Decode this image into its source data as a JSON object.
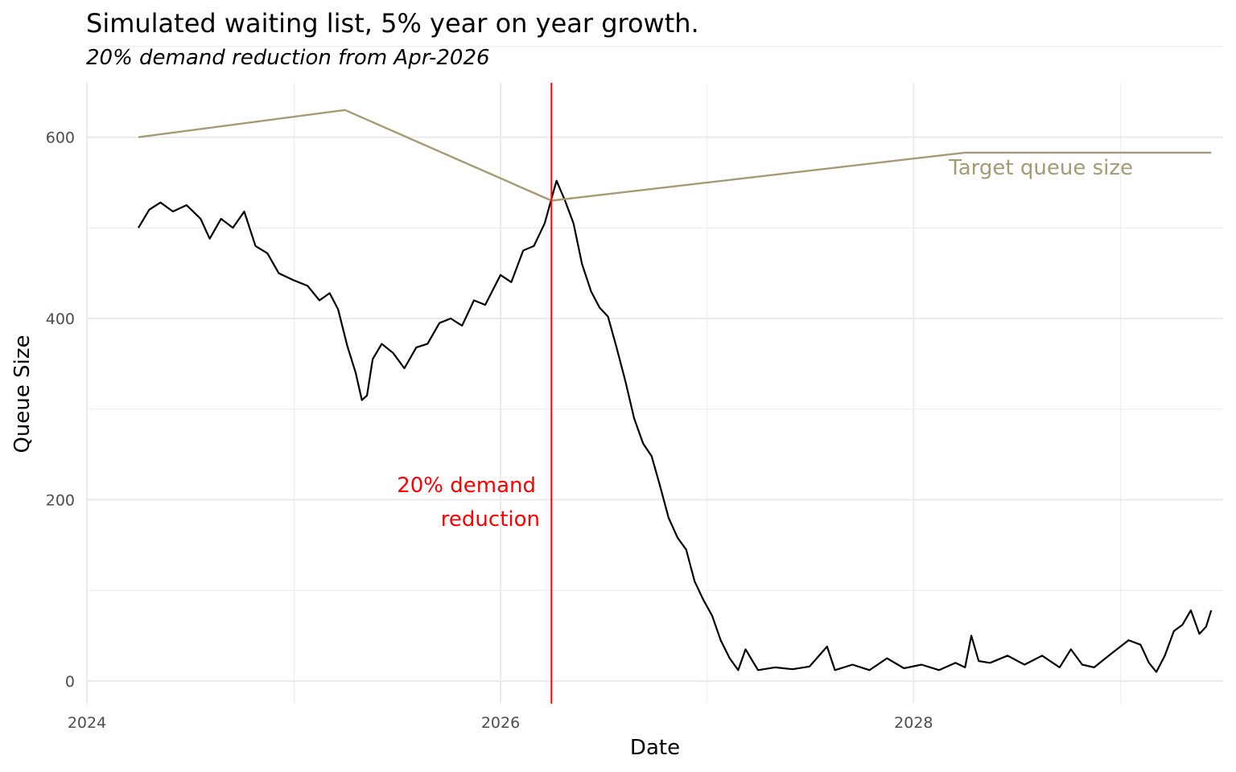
{
  "chart_data": {
    "type": "line",
    "title": "Simulated waiting list, 5% year on year growth.",
    "subtitle": "20% demand reduction from Apr-2026",
    "xlabel": "Date",
    "ylabel": "Queue Size",
    "x_axis": {
      "type": "date",
      "ticks": [
        "2024",
        "2026",
        "2028"
      ],
      "range": [
        "2024-01-01",
        "2029-07-01"
      ]
    },
    "y_axis": {
      "ticks": [
        0,
        200,
        400,
        600
      ],
      "range": [
        -25,
        660
      ]
    },
    "grid": true,
    "colors": {
      "queue": "#000000",
      "target": "#a59b72",
      "intervention": "#ff0000",
      "grid": "#ebebeb"
    },
    "series": [
      {
        "key": "queue",
        "values": [
          [
            "2024-04-01",
            500
          ],
          [
            "2024-04-20",
            520
          ],
          [
            "2024-05-10",
            528
          ],
          [
            "2024-06-01",
            518
          ],
          [
            "2024-06-25",
            525
          ],
          [
            "2024-07-20",
            510
          ],
          [
            "2024-08-05",
            488
          ],
          [
            "2024-08-25",
            510
          ],
          [
            "2024-09-15",
            500
          ],
          [
            "2024-10-05",
            518
          ],
          [
            "2024-10-25",
            480
          ],
          [
            "2024-11-15",
            472
          ],
          [
            "2024-12-05",
            450
          ],
          [
            "2025-01-01",
            442
          ],
          [
            "2025-01-25",
            436
          ],
          [
            "2025-02-15",
            420
          ],
          [
            "2025-03-05",
            428
          ],
          [
            "2025-03-20",
            410
          ],
          [
            "2025-04-05",
            370
          ],
          [
            "2025-04-20",
            340
          ],
          [
            "2025-05-01",
            310
          ],
          [
            "2025-05-10",
            315
          ],
          [
            "2025-05-20",
            355
          ],
          [
            "2025-06-05",
            372
          ],
          [
            "2025-06-25",
            362
          ],
          [
            "2025-07-15",
            345
          ],
          [
            "2025-08-05",
            368
          ],
          [
            "2025-08-25",
            372
          ],
          [
            "2025-09-15",
            395
          ],
          [
            "2025-10-05",
            400
          ],
          [
            "2025-10-25",
            392
          ],
          [
            "2025-11-15",
            420
          ],
          [
            "2025-12-05",
            415
          ],
          [
            "2026-01-01",
            448
          ],
          [
            "2026-01-20",
            440
          ],
          [
            "2026-02-10",
            475
          ],
          [
            "2026-03-01",
            480
          ],
          [
            "2026-03-20",
            505
          ],
          [
            "2026-04-01",
            532
          ],
          [
            "2026-04-10",
            552
          ],
          [
            "2026-04-25",
            530
          ],
          [
            "2026-05-10",
            505
          ],
          [
            "2026-05-25",
            460
          ],
          [
            "2026-06-10",
            430
          ],
          [
            "2026-06-25",
            412
          ],
          [
            "2026-07-10",
            402
          ],
          [
            "2026-07-25",
            368
          ],
          [
            "2026-08-10",
            330
          ],
          [
            "2026-08-25",
            290
          ],
          [
            "2026-09-10",
            262
          ],
          [
            "2026-09-25",
            248
          ],
          [
            "2026-10-10",
            215
          ],
          [
            "2026-10-25",
            180
          ],
          [
            "2026-11-10",
            158
          ],
          [
            "2026-11-25",
            145
          ],
          [
            "2026-12-10",
            110
          ],
          [
            "2026-12-25",
            90
          ],
          [
            "2027-01-10",
            72
          ],
          [
            "2027-01-25",
            45
          ],
          [
            "2027-02-10",
            25
          ],
          [
            "2027-02-25",
            12
          ],
          [
            "2027-03-10",
            35
          ],
          [
            "2027-04-01",
            12
          ],
          [
            "2027-05-01",
            15
          ],
          [
            "2027-06-01",
            13
          ],
          [
            "2027-07-01",
            16
          ],
          [
            "2027-08-01",
            38
          ],
          [
            "2027-08-15",
            12
          ],
          [
            "2027-09-15",
            18
          ],
          [
            "2027-10-15",
            12
          ],
          [
            "2027-11-15",
            25
          ],
          [
            "2027-12-15",
            14
          ],
          [
            "2028-01-15",
            18
          ],
          [
            "2028-02-15",
            12
          ],
          [
            "2028-03-15",
            20
          ],
          [
            "2028-04-01",
            15
          ],
          [
            "2028-04-12",
            50
          ],
          [
            "2028-04-25",
            22
          ],
          [
            "2028-05-15",
            20
          ],
          [
            "2028-06-15",
            28
          ],
          [
            "2028-07-15",
            18
          ],
          [
            "2028-08-15",
            28
          ],
          [
            "2028-09-15",
            15
          ],
          [
            "2028-10-05",
            35
          ],
          [
            "2028-10-25",
            18
          ],
          [
            "2028-11-15",
            15
          ],
          [
            "2028-12-15",
            30
          ],
          [
            "2029-01-15",
            45
          ],
          [
            "2029-02-05",
            40
          ],
          [
            "2029-02-20",
            20
          ],
          [
            "2029-03-05",
            10
          ],
          [
            "2029-03-20",
            28
          ],
          [
            "2029-04-05",
            55
          ],
          [
            "2029-04-20",
            62
          ],
          [
            "2029-05-05",
            78
          ],
          [
            "2029-05-20",
            52
          ],
          [
            "2029-06-01",
            60
          ],
          [
            "2029-06-10",
            78
          ]
        ]
      },
      {
        "key": "target",
        "values": [
          [
            "2024-04-01",
            600
          ],
          [
            "2025-04-01",
            630
          ],
          [
            "2026-04-01",
            530
          ],
          [
            "2028-04-01",
            583
          ],
          [
            "2029-06-10",
            583
          ]
        ]
      }
    ],
    "vline": {
      "x": "2026-04-01"
    },
    "annotations": {
      "intervention_line1": "20% demand",
      "intervention_line2": "reduction",
      "target_label": "Target queue size"
    }
  }
}
